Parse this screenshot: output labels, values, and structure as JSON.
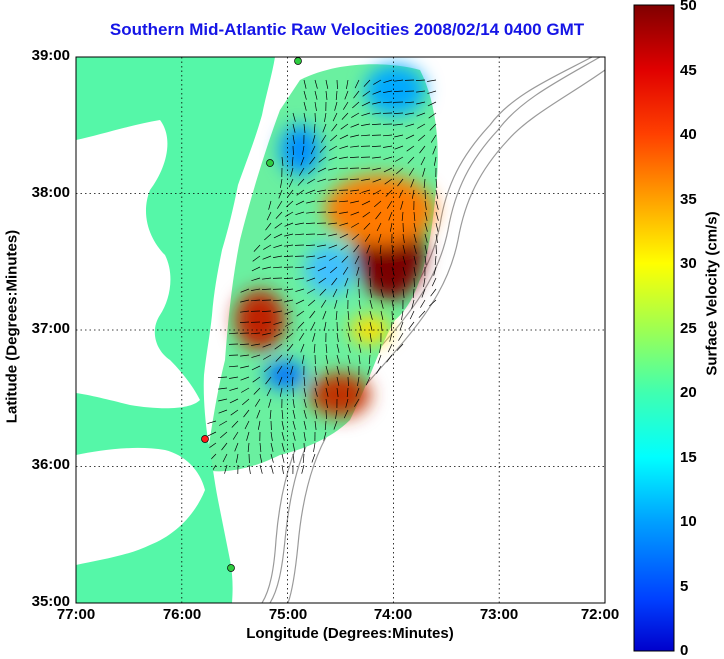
{
  "title": "Southern Mid-Atlantic Raw Velocities 2008/02/14 0400 GMT",
  "x_axis": {
    "label": "Longitude (Degrees:Minutes)",
    "ticks": [
      "77:00",
      "76:00",
      "75:00",
      "74:00",
      "73:00",
      "72:00"
    ]
  },
  "y_axis": {
    "label": "Latitude (Degrees:Minutes)",
    "ticks": [
      "39:00",
      "38:00",
      "37:00",
      "36:00",
      "35:00"
    ]
  },
  "colorbar": {
    "label": "Surface Velocity (cm/s)",
    "ticks": [
      "50",
      "45",
      "40",
      "35",
      "30",
      "25",
      "20",
      "15",
      "10",
      "5",
      "0"
    ],
    "range": [
      0,
      50
    ],
    "colormap": "jet"
  },
  "colors": {
    "land": "#55f7a8",
    "sea": "#ffffff",
    "title": "#1515e6",
    "site_active": "#2ecc40",
    "site_inactive": "#ff1a1a",
    "bathymetry": "#9a9a9a"
  },
  "map": {
    "lon_range_west": [
      77,
      72
    ],
    "lat_range": [
      35,
      39
    ],
    "grid": "dotted"
  }
}
